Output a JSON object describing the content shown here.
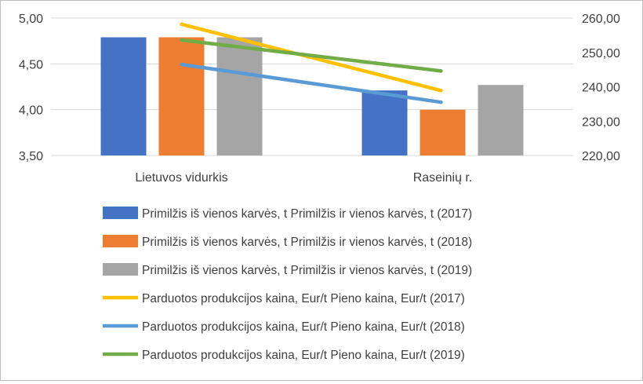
{
  "chart_data": {
    "type": "bar+line",
    "categories": [
      "Lietuvos vidurkis",
      "Raseinių r."
    ],
    "y_left": {
      "min": 3.5,
      "max": 5.0,
      "step": 0.5,
      "tick_labels": [
        "3,50",
        "4,00",
        "4,50",
        "5,00"
      ]
    },
    "y_right": {
      "min": 220,
      "max": 260,
      "step": 10,
      "tick_labels": [
        "220,00",
        "230,00",
        "240,00",
        "250,00",
        "260,00"
      ]
    },
    "grid": true,
    "legend_position": "bottom",
    "bar_series": [
      {
        "name": "Primilžis iš vienos karvės, t     Primilžis ir vienos karvės, t (2017)",
        "color": "#4472C4",
        "values": [
          4.79,
          4.21
        ]
      },
      {
        "name": "Primilžis iš vienos karvės, t     Primilžis ir vienos karvės, t (2018)",
        "color": "#ED7D31",
        "values": [
          4.79,
          4.0
        ]
      },
      {
        "name": "Primilžis iš vienos karvės, t     Primilžis ir vienos karvės, t (2019)",
        "color": "#A5A5A5",
        "values": [
          4.79,
          4.27
        ]
      }
    ],
    "line_series": [
      {
        "name": "Parduotos produkcijos kaina, Eur/t  Pieno kaina, Eur/t (2017)",
        "color": "#FFC000",
        "values": [
          258.2,
          238.9
        ]
      },
      {
        "name": "Parduotos produkcijos kaina, Eur/t  Pieno kaina, Eur/t  (2018)",
        "color": "#5B9BD5",
        "values": [
          246.5,
          235.5
        ]
      },
      {
        "name": "Parduotos produkcijos kaina, Eur/t  Pieno kaina, Eur/t (2019)",
        "color": "#70AD47",
        "values": [
          253.6,
          244.6
        ]
      }
    ]
  }
}
